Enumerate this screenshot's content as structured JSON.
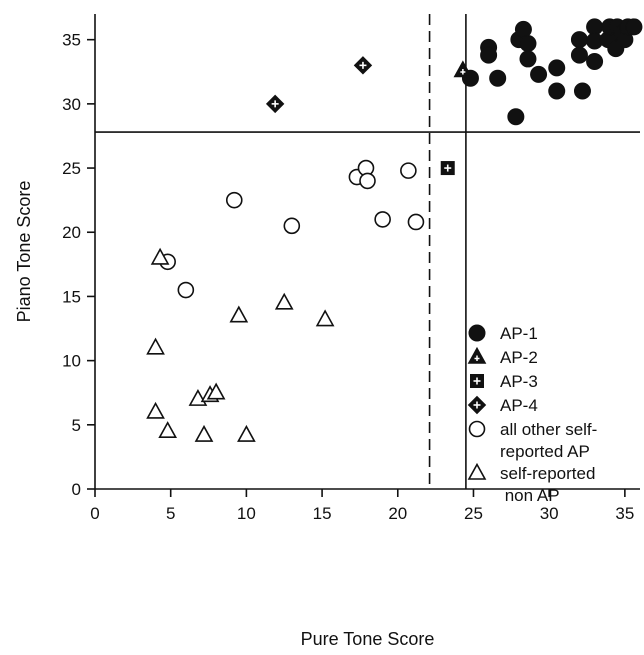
{
  "chart_data": {
    "type": "scatter",
    "xlabel": "Pure Tone Score",
    "ylabel": "Piano Tone Score",
    "xlim": [
      0,
      36
    ],
    "ylim": [
      0,
      37
    ],
    "xticks": [
      0,
      5,
      10,
      15,
      20,
      25,
      30,
      35
    ],
    "yticks": [
      0,
      5,
      10,
      15,
      20,
      25,
      30,
      35
    ],
    "grid": false,
    "legend_position": "right",
    "reference_lines": [
      {
        "orientation": "vertical",
        "x": 22.1,
        "style": "dashed"
      },
      {
        "orientation": "vertical",
        "x": 24.5,
        "style": "solid"
      },
      {
        "orientation": "horizontal",
        "y": 27.8,
        "style": "solid"
      }
    ],
    "series": [
      {
        "name": "AP-1",
        "marker": "filled-circle",
        "points": [
          [
            24.8,
            32
          ],
          [
            26,
            34.4
          ],
          [
            26,
            33.8
          ],
          [
            26.6,
            32
          ],
          [
            27.8,
            29
          ],
          [
            28,
            35
          ],
          [
            28.3,
            35.8
          ],
          [
            28.6,
            34.7
          ],
          [
            28.6,
            33.5
          ],
          [
            29.3,
            32.3
          ],
          [
            30.5,
            32.8
          ],
          [
            30.5,
            31
          ],
          [
            32,
            35
          ],
          [
            32,
            33.8
          ],
          [
            32.2,
            31
          ],
          [
            33,
            36
          ],
          [
            33,
            34.9
          ],
          [
            33,
            33.3
          ],
          [
            33.9,
            35
          ],
          [
            34,
            36
          ],
          [
            34.4,
            34.3
          ],
          [
            34.5,
            36
          ],
          [
            34.8,
            35.5
          ],
          [
            35,
            35
          ],
          [
            35.2,
            36
          ],
          [
            35.6,
            36
          ]
        ]
      },
      {
        "name": "AP-2",
        "marker": "triangle-cross",
        "points": [
          [
            24.3,
            32.6
          ]
        ]
      },
      {
        "name": "AP-3",
        "marker": "square-cross",
        "points": [
          [
            23.3,
            25
          ]
        ]
      },
      {
        "name": "AP-4",
        "marker": "diamond-cross",
        "points": [
          [
            11.9,
            30
          ],
          [
            17.7,
            33
          ]
        ]
      },
      {
        "name": "all other self-\nreported AP",
        "marker": "open-circle",
        "points": [
          [
            4.8,
            17.7
          ],
          [
            6,
            15.5
          ],
          [
            9.2,
            22.5
          ],
          [
            13,
            20.5
          ],
          [
            17.3,
            24.3
          ],
          [
            17.9,
            25
          ],
          [
            18,
            24
          ],
          [
            19,
            21
          ],
          [
            20.7,
            24.8
          ],
          [
            21.2,
            20.8
          ]
        ]
      },
      {
        "name": "self-reported\n non AP",
        "marker": "open-triangle",
        "points": [
          [
            4,
            11
          ],
          [
            4,
            6
          ],
          [
            4.3,
            18
          ],
          [
            4.8,
            4.5
          ],
          [
            6.8,
            7
          ],
          [
            7.2,
            4.2
          ],
          [
            7.6,
            7.3
          ],
          [
            8,
            7.5
          ],
          [
            9.5,
            13.5
          ],
          [
            10,
            4.2
          ],
          [
            12.5,
            14.5
          ],
          [
            15.2,
            13.2
          ]
        ]
      }
    ]
  }
}
